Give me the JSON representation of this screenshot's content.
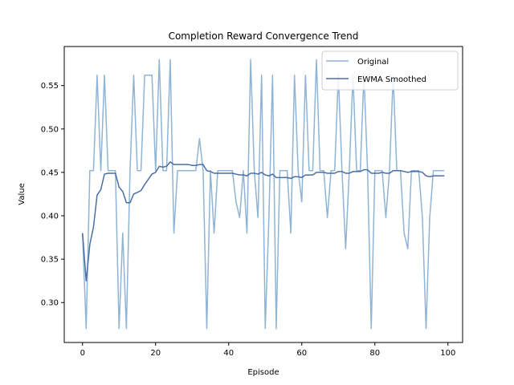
{
  "chart_data": {
    "type": "line",
    "title": "Completion Reward Convergence Trend",
    "xlabel": "Episode",
    "ylabel": "Value",
    "xlim": [
      -5,
      104
    ],
    "ylim": [
      0.254,
      0.595
    ],
    "xticks": [
      0,
      20,
      40,
      60,
      80,
      100
    ],
    "yticks": [
      0.3,
      0.35,
      0.4,
      0.45,
      0.5,
      0.55
    ],
    "ytick_labels": [
      "0.30",
      "0.35",
      "0.40",
      "0.45",
      "0.50",
      "0.55"
    ],
    "grid": false,
    "legend_position": "upper-right",
    "colors": {
      "original": "#8fb4d6",
      "smoothed": "#4a6fa5"
    },
    "series": [
      {
        "name": "Original",
        "x": [
          0,
          1,
          2,
          3,
          4,
          5,
          6,
          7,
          8,
          9,
          10,
          11,
          12,
          13,
          14,
          15,
          16,
          17,
          18,
          19,
          20,
          21,
          22,
          23,
          24,
          25,
          26,
          27,
          28,
          29,
          30,
          31,
          32,
          33,
          34,
          35,
          36,
          37,
          38,
          39,
          40,
          41,
          42,
          43,
          44,
          45,
          46,
          47,
          48,
          49,
          50,
          51,
          52,
          53,
          54,
          55,
          56,
          57,
          58,
          59,
          60,
          61,
          62,
          63,
          64,
          65,
          66,
          67,
          68,
          69,
          70,
          71,
          72,
          73,
          74,
          75,
          76,
          77,
          78,
          79,
          80,
          81,
          82,
          83,
          84,
          85,
          86,
          87,
          88,
          89,
          90,
          91,
          92,
          93,
          94,
          95,
          96,
          97,
          98,
          99
        ],
        "values": [
          0.38,
          0.27,
          0.452,
          0.452,
          0.562,
          0.452,
          0.562,
          0.452,
          0.452,
          0.452,
          0.27,
          0.38,
          0.27,
          0.452,
          0.562,
          0.452,
          0.452,
          0.562,
          0.562,
          0.562,
          0.452,
          0.58,
          0.452,
          0.452,
          0.58,
          0.38,
          0.452,
          0.452,
          0.452,
          0.452,
          0.452,
          0.452,
          0.489,
          0.452,
          0.27,
          0.452,
          0.38,
          0.452,
          0.452,
          0.452,
          0.452,
          0.452,
          0.416,
          0.398,
          0.452,
          0.38,
          0.58,
          0.452,
          0.398,
          0.562,
          0.27,
          0.398,
          0.562,
          0.27,
          0.452,
          0.452,
          0.452,
          0.38,
          0.562,
          0.452,
          0.416,
          0.562,
          0.452,
          0.452,
          0.58,
          0.452,
          0.452,
          0.398,
          0.452,
          0.452,
          0.562,
          0.452,
          0.362,
          0.452,
          0.562,
          0.452,
          0.452,
          0.562,
          0.452,
          0.27,
          0.452,
          0.452,
          0.452,
          0.398,
          0.452,
          0.562,
          0.452,
          0.452,
          0.38,
          0.362,
          0.452,
          0.452,
          0.452,
          0.398,
          0.27,
          0.398,
          0.452,
          0.452,
          0.452,
          0.452
        ]
      },
      {
        "name": "EWMA Smoothed",
        "x": [
          0,
          1,
          2,
          3,
          4,
          5,
          6,
          7,
          8,
          9,
          10,
          11,
          12,
          13,
          14,
          15,
          16,
          17,
          18,
          19,
          20,
          21,
          22,
          23,
          24,
          25,
          26,
          27,
          28,
          29,
          30,
          31,
          32,
          33,
          34,
          35,
          36,
          37,
          38,
          39,
          40,
          41,
          42,
          43,
          44,
          45,
          46,
          47,
          48,
          49,
          50,
          51,
          52,
          53,
          54,
          55,
          56,
          57,
          58,
          59,
          60,
          61,
          62,
          63,
          64,
          65,
          66,
          67,
          68,
          69,
          70,
          71,
          72,
          73,
          74,
          75,
          76,
          77,
          78,
          79,
          80,
          81,
          82,
          83,
          84,
          85,
          86,
          87,
          88,
          89,
          90,
          91,
          92,
          93,
          94,
          95,
          96,
          97,
          98,
          99
        ],
        "values": [
          0.38,
          0.325,
          0.367,
          0.387,
          0.424,
          0.43,
          0.448,
          0.449,
          0.449,
          0.449,
          0.433,
          0.428,
          0.415,
          0.415,
          0.425,
          0.427,
          0.429,
          0.436,
          0.442,
          0.448,
          0.45,
          0.457,
          0.456,
          0.457,
          0.462,
          0.459,
          0.459,
          0.459,
          0.459,
          0.459,
          0.458,
          0.458,
          0.459,
          0.459,
          0.452,
          0.451,
          0.449,
          0.449,
          0.449,
          0.449,
          0.449,
          0.449,
          0.448,
          0.447,
          0.447,
          0.446,
          0.449,
          0.449,
          0.448,
          0.45,
          0.447,
          0.446,
          0.448,
          0.444,
          0.444,
          0.444,
          0.444,
          0.443,
          0.445,
          0.445,
          0.444,
          0.447,
          0.447,
          0.447,
          0.45,
          0.45,
          0.45,
          0.449,
          0.449,
          0.449,
          0.451,
          0.451,
          0.449,
          0.449,
          0.451,
          0.451,
          0.451,
          0.453,
          0.453,
          0.449,
          0.449,
          0.449,
          0.45,
          0.449,
          0.449,
          0.452,
          0.452,
          0.452,
          0.451,
          0.45,
          0.451,
          0.451,
          0.451,
          0.45,
          0.446,
          0.445,
          0.446,
          0.446,
          0.446,
          0.446
        ]
      }
    ]
  }
}
